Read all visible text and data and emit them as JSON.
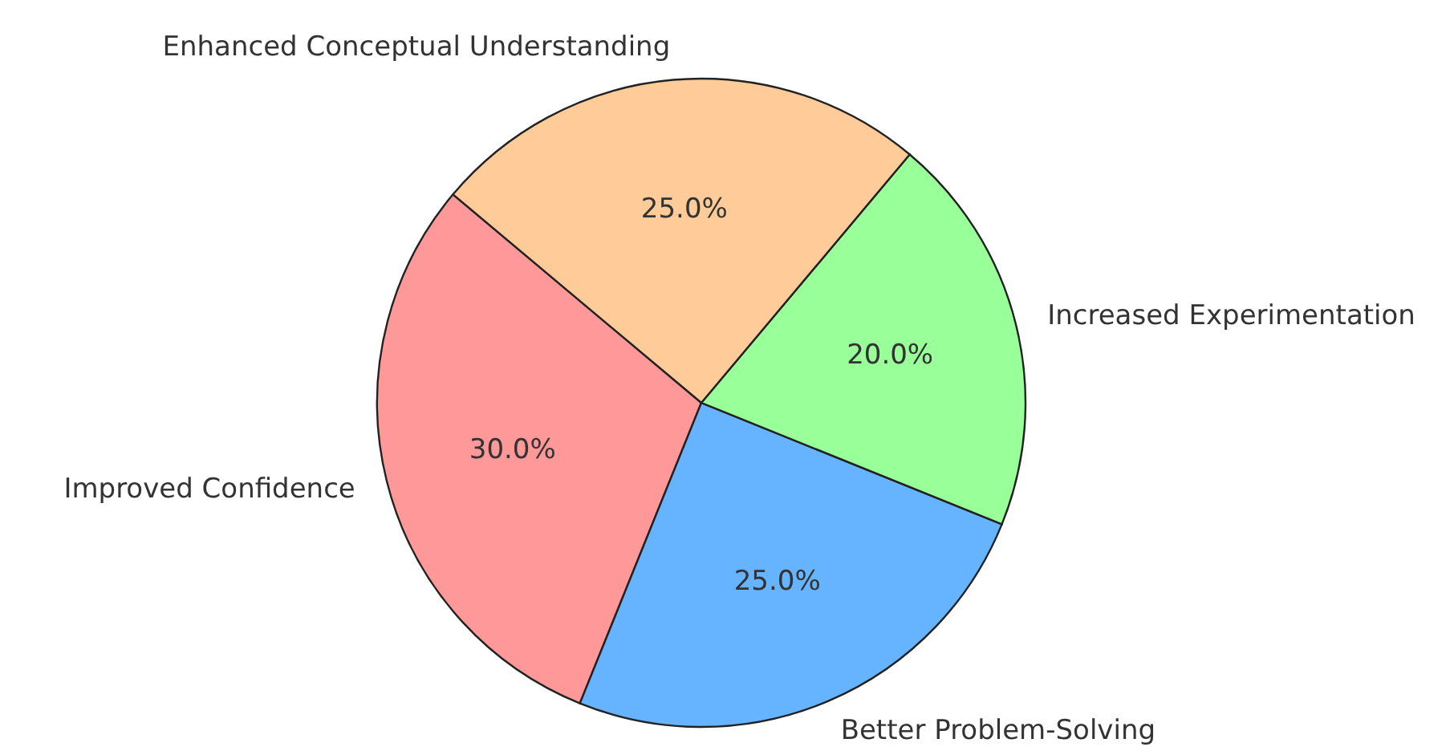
{
  "chart_data": {
    "type": "pie",
    "categories": [
      "Improved Confidence",
      "Better Problem-Solving",
      "Increased Experimentation",
      "Enhanced Conceptual Understanding"
    ],
    "values": [
      30,
      25,
      20,
      25
    ],
    "colors": [
      "#ff9999",
      "#66b3ff",
      "#99ff99",
      "#ffcc99"
    ],
    "value_labels": [
      "30.0%",
      "25.0%",
      "20.0%",
      "25.0%"
    ],
    "legend": false
  }
}
